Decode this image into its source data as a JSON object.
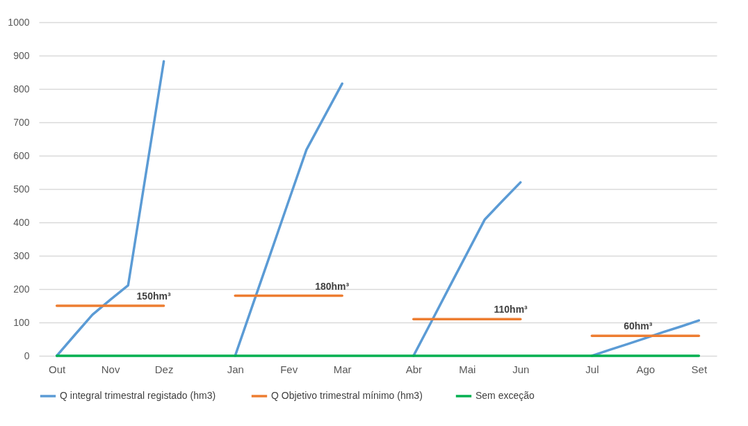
{
  "chart_data": {
    "type": "line",
    "categories": [
      "Out",
      null,
      null,
      "Nov",
      null,
      null,
      "Dez",
      null,
      null,
      null,
      "Jan",
      null,
      null,
      "Fev",
      null,
      null,
      "Mar",
      null,
      null,
      null,
      "Abr",
      null,
      null,
      "Mai",
      null,
      null,
      "Jun",
      null,
      null,
      null,
      "Jul",
      null,
      null,
      "Ago",
      null,
      null,
      "Set"
    ],
    "series": [
      {
        "name": "Q integral  trimestral registado (hm3)",
        "color": "#5b9bd5",
        "values": [
          0,
          62,
          123,
          168,
          211,
          547,
          883,
          null,
          null,
          null,
          0,
          155,
          309,
          464,
          618,
          717,
          816,
          null,
          null,
          null,
          0,
          102,
          205,
          307,
          409,
          465,
          520,
          null,
          null,
          null,
          0,
          18,
          35,
          53,
          71,
          88,
          106
        ]
      },
      {
        "name": "Q Objetivo trimestral mínimo (hm3)",
        "color": "#ed7d31",
        "values": [
          150,
          150,
          150,
          150,
          150,
          150,
          150,
          null,
          null,
          null,
          180,
          180,
          180,
          180,
          180,
          180,
          180,
          null,
          null,
          null,
          110,
          110,
          110,
          110,
          110,
          110,
          110,
          null,
          null,
          null,
          60,
          60,
          60,
          60,
          60,
          60,
          60
        ]
      },
      {
        "name": "Sem exceção",
        "color": "#00b050",
        "values": [
          0,
          0,
          0,
          0,
          0,
          0,
          0,
          0,
          0,
          0,
          0,
          0,
          0,
          0,
          0,
          0,
          0,
          0,
          0,
          0,
          0,
          0,
          0,
          0,
          0,
          0,
          0,
          0,
          0,
          0,
          0,
          0,
          0,
          0,
          0,
          0,
          0
        ]
      }
    ],
    "ylim": [
      0,
      1000
    ],
    "yticks": [
      0,
      100,
      200,
      300,
      400,
      500,
      600,
      700,
      800,
      900,
      1000
    ],
    "grid": "y",
    "legend": "bottom",
    "marker": "none",
    "line_style": "solid",
    "annotations": [
      {
        "text": "150hm³",
        "x": "Dez",
        "y": 150
      },
      {
        "text": "180hm³",
        "x": "Mar",
        "y": 180
      },
      {
        "text": "110hm³",
        "x": "Jun",
        "y": 110
      },
      {
        "text": "60hm³",
        "x": "Ago",
        "y": 60
      }
    ]
  }
}
